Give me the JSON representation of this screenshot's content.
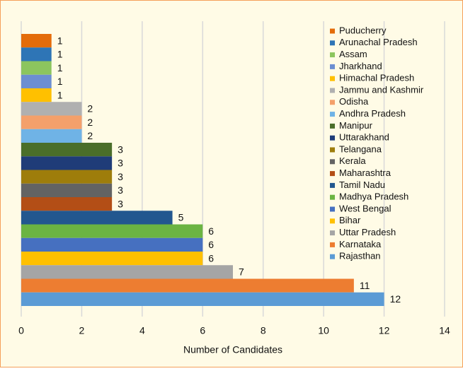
{
  "chart_data": {
    "type": "bar",
    "orientation": "horizontal",
    "categories": [
      "Puducherry",
      "Arunachal Pradesh",
      "Assam",
      "Jharkhand",
      "Himachal Pradesh",
      "Jammu and Kashmir",
      "Odisha",
      "Andhra Pradesh",
      "Manipur",
      "Uttarakhand",
      "Telangana",
      "Kerala",
      "Maharashtra",
      "Tamil Nadu",
      "Madhya Pradesh",
      "West Bengal",
      "Bihar",
      "Uttar Pradesh",
      "Karnataka",
      "Rajasthan"
    ],
    "values": [
      1,
      1,
      1,
      1,
      1,
      2,
      2,
      2,
      3,
      3,
      3,
      3,
      3,
      5,
      6,
      6,
      6,
      7,
      11,
      12
    ],
    "colors": [
      "#e46c0a",
      "#2e75b6",
      "#8cc55e",
      "#6c8ed1",
      "#ffc000",
      "#b0b0b0",
      "#f4a06b",
      "#6fb3e6",
      "#4a6e2a",
      "#1f3c78",
      "#9e7d0b",
      "#636363",
      "#b34e16",
      "#22578f",
      "#6bb442",
      "#4670c0",
      "#ffc000",
      "#a5a5a5",
      "#ed7d31",
      "#5b9bd5"
    ],
    "xlabel": "Number of Candidates",
    "xlim": [
      0,
      14
    ],
    "xticks": [
      0,
      2,
      4,
      6,
      8,
      10,
      12,
      14
    ],
    "grid": true,
    "legend": "top-right"
  }
}
